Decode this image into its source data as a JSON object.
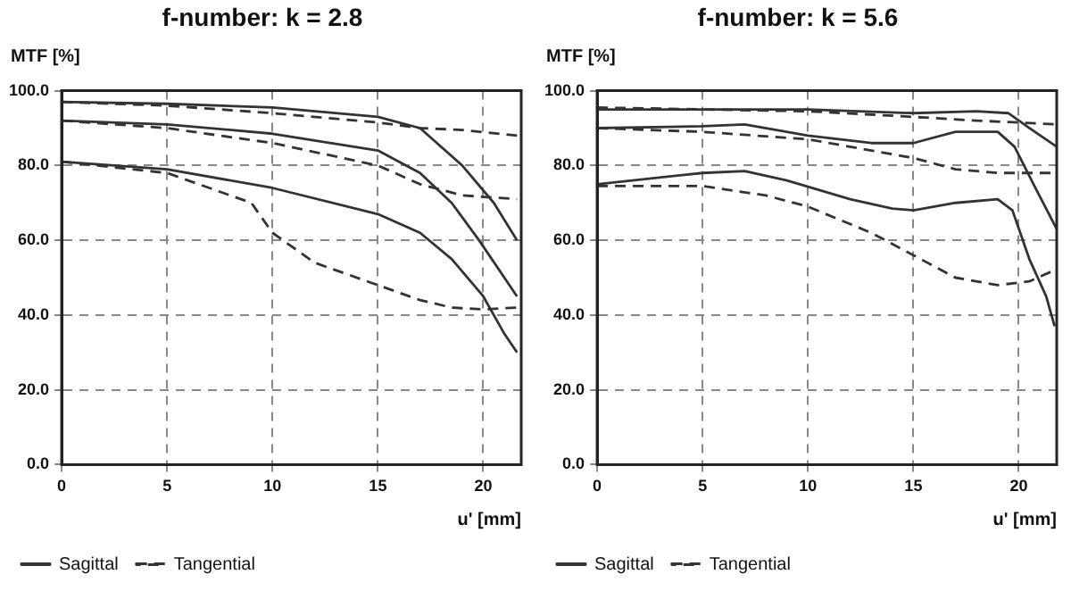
{
  "chart_data": [
    {
      "type": "line",
      "title": "f-number: k = 2.8",
      "ylabel": "MTF [%]",
      "xlabel": "u' [mm]",
      "xlim": [
        0,
        21.8
      ],
      "xticks": [
        0,
        5,
        10,
        15,
        20
      ],
      "ylim": [
        0,
        100
      ],
      "yticks": [
        {
          "value": 0,
          "label": "0.0"
        },
        {
          "value": 20,
          "label": "20.0"
        },
        {
          "value": 40,
          "label": "40.0"
        },
        {
          "value": 60,
          "label": "60.0"
        },
        {
          "value": 80,
          "label": "80.0"
        },
        {
          "value": 100,
          "label": "100.0"
        }
      ],
      "grid": true,
      "legend": "bottom left",
      "marker": "none",
      "series": [
        {
          "name": "Sagittal",
          "color": "#333333",
          "line_style": "solid",
          "x": [
            0,
            5,
            10,
            15,
            17,
            19,
            20.5,
            21.6
          ],
          "values": [
            97,
            96.5,
            95.5,
            93,
            90,
            80,
            70,
            60
          ]
        },
        {
          "name": "Tangential",
          "color": "#333333",
          "line_style": "dashed",
          "x": [
            0,
            5,
            10,
            15,
            17,
            19,
            21.6
          ],
          "values": [
            97,
            96,
            94,
            91.5,
            90,
            89.5,
            88
          ]
        },
        {
          "color": "#333333",
          "line_style": "solid",
          "x": [
            0,
            5,
            10,
            15,
            17,
            18.5,
            19.8,
            21,
            21.6
          ],
          "values": [
            92,
            91,
            88.5,
            84,
            78,
            70,
            60,
            50,
            45
          ]
        },
        {
          "color": "#333333",
          "line_style": "dashed",
          "x": [
            0,
            5,
            10,
            15,
            17,
            19,
            21.6
          ],
          "values": [
            92,
            90,
            86,
            80,
            75,
            72,
            71
          ]
        },
        {
          "color": "#333333",
          "line_style": "solid",
          "x": [
            0,
            5,
            10,
            15,
            17,
            18.5,
            20,
            21,
            21.6
          ],
          "values": [
            81,
            79,
            74,
            67,
            62,
            55,
            45,
            35,
            30
          ]
        },
        {
          "color": "#333333",
          "line_style": "dashed",
          "x": [
            0,
            5,
            9,
            10,
            12,
            15,
            17,
            18.5,
            20,
            21.6
          ],
          "values": [
            81,
            78,
            70,
            62,
            54,
            48,
            44,
            42,
            41.5,
            42
          ]
        }
      ]
    },
    {
      "type": "line",
      "title": "f-number: k = 5.6",
      "ylabel": "MTF [%]",
      "xlabel": "u' [mm]",
      "xlim": [
        0,
        21.8
      ],
      "xticks": [
        0,
        5,
        10,
        15,
        20
      ],
      "ylim": [
        0,
        100
      ],
      "yticks": [
        {
          "value": 0,
          "label": "0.0"
        },
        {
          "value": 20,
          "label": "20.0"
        },
        {
          "value": 40,
          "label": "40.0"
        },
        {
          "value": 60,
          "label": "60.0"
        },
        {
          "value": 80,
          "label": "80.0"
        },
        {
          "value": 100,
          "label": "100.0"
        }
      ],
      "grid": true,
      "legend": "bottom left",
      "marker": "none",
      "series": [
        {
          "name": "Sagittal",
          "color": "#333333",
          "line_style": "solid",
          "x": [
            0,
            10,
            15,
            18,
            19.5,
            20.5,
            21.8
          ],
          "values": [
            95,
            95,
            94,
            94.5,
            94,
            90,
            85
          ]
        },
        {
          "name": "Tangential",
          "color": "#333333",
          "line_style": "dashed",
          "x": [
            0,
            5,
            10,
            15,
            18,
            20,
            21.8
          ],
          "values": [
            95.5,
            95,
            94.5,
            93,
            92,
            91.5,
            91
          ]
        },
        {
          "color": "#333333",
          "line_style": "solid",
          "x": [
            0,
            5,
            7,
            10,
            13,
            15,
            17,
            19,
            19.8,
            20.7,
            21.8
          ],
          "values": [
            90,
            90.5,
            91,
            88,
            86,
            86,
            89,
            89,
            85,
            75,
            63
          ]
        },
        {
          "color": "#333333",
          "line_style": "dashed",
          "x": [
            0,
            5,
            10,
            13,
            15,
            17,
            19,
            21.8
          ],
          "values": [
            90,
            89,
            87,
            84,
            82,
            79,
            78,
            78
          ]
        },
        {
          "color": "#333333",
          "line_style": "solid",
          "x": [
            0,
            5,
            7,
            9,
            12,
            14,
            15,
            17,
            19,
            19.7,
            20.5,
            21.3,
            21.7
          ],
          "values": [
            75,
            78,
            78.5,
            76,
            71,
            68.5,
            68,
            70,
            71,
            68,
            55,
            45,
            37
          ]
        },
        {
          "color": "#333333",
          "line_style": "dashed",
          "x": [
            0,
            5,
            8,
            10,
            13,
            15,
            17,
            19,
            20.5,
            21.7
          ],
          "values": [
            74.5,
            74.5,
            72,
            69,
            62,
            56,
            50,
            48,
            49,
            52
          ]
        }
      ]
    }
  ]
}
